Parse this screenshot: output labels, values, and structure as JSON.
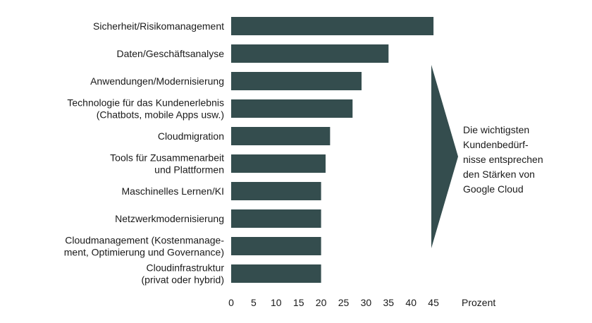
{
  "chart_data": {
    "type": "bar",
    "orientation": "horizontal",
    "categories": [
      [
        "Sicherheit/Risikomanagement"
      ],
      [
        "Daten/Geschäftsanalyse"
      ],
      [
        "Anwendungen/Modernisierung"
      ],
      [
        "Technologie für das Kundenerlebnis",
        "(Chatbots, mobile Apps usw.)"
      ],
      [
        "Cloudmigration"
      ],
      [
        "Tools für Zusammenarbeit",
        "und Plattformen"
      ],
      [
        "Maschinelles Lernen/KI"
      ],
      [
        "Netzwerkmodernisierung"
      ],
      [
        "Cloudmanagement (Kostenmanage-",
        "ment, Optimierung und Governance)"
      ],
      [
        "Cloudinfrastruktur",
        "(privat oder hybrid)"
      ]
    ],
    "values": [
      45,
      35,
      29,
      27,
      22,
      21,
      20,
      20,
      20,
      20
    ],
    "xlim": [
      0,
      45
    ],
    "xticks": [
      0,
      5,
      10,
      15,
      20,
      25,
      30,
      35,
      40,
      45
    ],
    "xlabel": "Prozent",
    "ylabel": "",
    "title": "",
    "grid": false,
    "bar_color": "#344d4e",
    "callout": {
      "lines": [
        "Die wichtigsten",
        "Kundenbedürf-",
        "nisse entsprechen",
        "den Stärken von",
        "Google Cloud"
      ],
      "color": "#344d4e"
    }
  }
}
